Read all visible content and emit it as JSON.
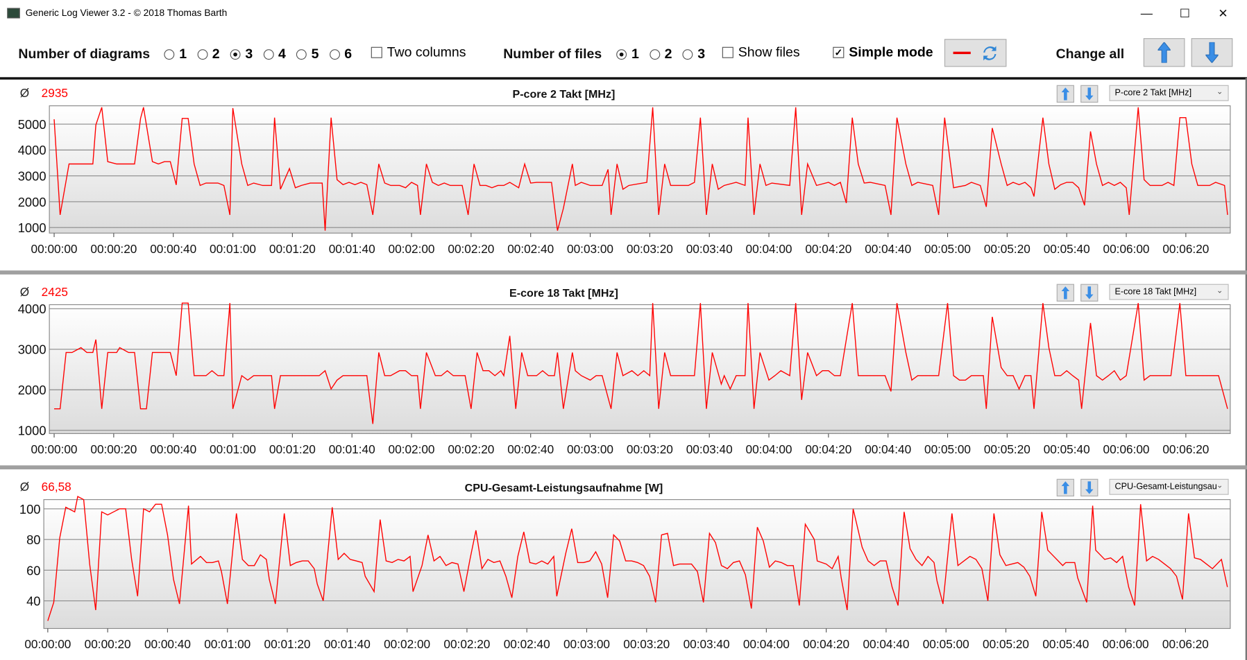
{
  "window": {
    "title": "Generic Log Viewer 3.2 - © 2018 Thomas Barth",
    "minimize": "—",
    "maximize": "☐",
    "close": "✕"
  },
  "toolbar": {
    "diagrams_label": "Number of diagrams",
    "diagram_options": [
      "1",
      "2",
      "3",
      "4",
      "5",
      "6"
    ],
    "diagram_selected": "3",
    "two_columns": {
      "label": "Two columns",
      "checked": false
    },
    "files_label": "Number of files",
    "file_options": [
      "1",
      "2",
      "3"
    ],
    "file_selected": "1",
    "show_files": {
      "label": "Show files",
      "checked": false
    },
    "simple_mode": {
      "label": "Simple mode",
      "checked": true
    },
    "change_all_label": "Change all"
  },
  "colors": {
    "series": "#ff0000",
    "accent_arrow": "#3a8ee6"
  },
  "chart_data": [
    {
      "type": "line",
      "title": "P-core 2 Takt [MHz]",
      "avg_symbol": "Ø",
      "avg": "2935",
      "selector": "P-core 2 Takt [MHz]",
      "ylim": [
        785,
        5710
      ],
      "yticks": [
        1000,
        2000,
        3000,
        4000,
        5000
      ],
      "xticks": [
        "00:00:00",
        "00:00:20",
        "00:00:40",
        "00:01:00",
        "00:01:20",
        "00:01:40",
        "00:02:00",
        "00:02:20",
        "00:02:40",
        "00:03:00",
        "00:03:20",
        "00:03:40",
        "00:04:00",
        "00:04:20",
        "00:04:40",
        "00:05:00",
        "00:05:20",
        "00:05:40",
        "00:06:00",
        "00:06:20"
      ],
      "xtick_step_s": 20,
      "x_s": [
        0,
        2,
        5,
        13,
        14,
        16,
        18,
        21,
        27,
        29,
        30,
        33,
        35,
        37,
        39,
        41,
        43,
        45,
        47,
        49,
        51,
        55,
        57,
        59,
        60,
        63,
        65,
        67,
        70,
        73,
        74,
        76,
        79,
        81,
        83,
        86,
        90,
        91,
        93,
        95,
        97,
        99,
        101,
        103,
        105,
        107,
        109,
        111,
        113,
        116,
        118,
        120,
        122,
        123,
        125,
        127,
        129,
        131,
        133,
        137,
        139,
        141,
        143,
        145,
        147,
        149,
        151,
        153,
        156,
        158,
        160,
        162,
        167,
        169,
        171,
        174,
        175,
        177,
        180,
        184,
        186,
        187,
        189,
        191,
        193,
        199,
        201,
        203,
        205,
        207,
        213,
        215,
        217,
        219,
        221,
        223,
        225,
        229,
        232,
        233,
        235,
        237,
        239,
        241,
        247,
        249,
        251,
        253,
        256,
        260,
        262,
        264,
        266,
        268,
        270,
        272,
        274,
        279,
        281,
        283,
        286,
        288,
        290,
        295,
        297,
        299,
        302,
        306,
        308,
        311,
        313,
        315,
        318,
        320,
        322,
        324,
        326,
        328,
        329,
        332,
        334,
        336,
        338,
        340,
        342,
        344,
        346,
        348,
        350,
        352,
        354,
        356,
        358,
        360,
        361,
        364,
        366,
        368,
        372,
        374,
        376,
        378,
        380,
        382,
        384,
        388,
        390,
        393,
        394
      ],
      "values": [
        5190,
        1490,
        3460,
        3460,
        4970,
        5650,
        3550,
        3460,
        3460,
        5220,
        5650,
        3550,
        3460,
        3550,
        3550,
        2650,
        5220,
        5220,
        3460,
        2630,
        2720,
        2720,
        2630,
        1490,
        5620,
        3460,
        2630,
        2720,
        2630,
        2630,
        5250,
        2480,
        3280,
        2540,
        2630,
        2720,
        2720,
        880,
        5250,
        2850,
        2660,
        2750,
        2660,
        2750,
        2660,
        1490,
        3460,
        2720,
        2630,
        2630,
        2540,
        2750,
        2630,
        1490,
        3460,
        2750,
        2630,
        2720,
        2630,
        2630,
        1490,
        3460,
        2630,
        2630,
        2540,
        2630,
        2630,
        2750,
        2540,
        3460,
        2720,
        2750,
        2750,
        880,
        1740,
        3460,
        2630,
        2750,
        2630,
        2630,
        3250,
        1490,
        3460,
        2480,
        2630,
        2750,
        5650,
        1490,
        3460,
        2630,
        2630,
        2750,
        5250,
        1490,
        3460,
        2480,
        2630,
        2750,
        2630,
        5250,
        1490,
        3460,
        2630,
        2720,
        2630,
        5650,
        1490,
        3460,
        2630,
        2750,
        2630,
        2750,
        1950,
        5250,
        3460,
        2720,
        2750,
        2630,
        1490,
        5250,
        3460,
        2630,
        2750,
        2630,
        1490,
        5250,
        2540,
        2630,
        2750,
        2630,
        1800,
        4850,
        3460,
        2630,
        2750,
        2660,
        2750,
        2540,
        2200,
        5250,
        3460,
        2480,
        2660,
        2750,
        2750,
        2540,
        1860,
        4720,
        3460,
        2630,
        2750,
        2630,
        2750,
        2540,
        1490,
        5650,
        2850,
        2630,
        2630,
        2750,
        2630,
        5250,
        5250,
        3460,
        2630,
        2630,
        2750,
        2630,
        1490
      ]
    },
    {
      "type": "line",
      "title": "E-core 18 Takt [MHz]",
      "avg_symbol": "Ø",
      "avg": "2425",
      "selector": "E-core 18 Takt [MHz]",
      "ylim": [
        920,
        4100
      ],
      "yticks": [
        1000,
        2000,
        3000,
        4000
      ],
      "xticks": [
        "00:00:00",
        "00:00:20",
        "00:00:40",
        "00:01:00",
        "00:01:20",
        "00:01:40",
        "00:02:00",
        "00:02:20",
        "00:02:40",
        "00:03:00",
        "00:03:20",
        "00:03:40",
        "00:04:00",
        "00:04:20",
        "00:04:40",
        "00:05:00",
        "00:05:20",
        "00:05:40",
        "00:06:00",
        "00:06:20"
      ],
      "xtick_step_s": 20,
      "x_s": [
        0,
        2,
        4,
        6,
        9,
        11,
        13,
        14,
        16,
        18,
        21,
        22,
        25,
        27,
        29,
        31,
        33,
        39,
        41,
        43,
        45,
        47,
        49,
        51,
        53,
        55,
        57,
        59,
        60,
        63,
        65,
        67,
        73,
        74,
        76,
        89,
        91,
        93,
        95,
        97,
        105,
        107,
        109,
        111,
        113,
        116,
        118,
        120,
        122,
        123,
        125,
        128,
        130,
        132,
        134,
        138,
        140,
        142,
        144,
        146,
        148,
        150,
        151,
        153,
        155,
        157,
        159,
        162,
        164,
        166,
        168,
        169,
        171,
        174,
        175,
        177,
        180,
        182,
        184,
        187,
        189,
        191,
        194,
        196,
        198,
        200,
        201,
        203,
        205,
        207,
        215,
        217,
        219,
        221,
        224,
        225,
        227,
        229,
        232,
        233,
        235,
        237,
        240,
        242,
        244,
        247,
        249,
        251,
        253,
        256,
        258,
        260,
        262,
        264,
        268,
        270,
        279,
        281,
        283,
        286,
        288,
        290,
        297,
        300,
        302,
        304,
        306,
        308,
        312,
        313,
        315,
        318,
        320,
        322,
        324,
        326,
        328,
        329,
        332,
        334,
        336,
        338,
        340,
        342,
        344,
        345,
        348,
        350,
        352,
        354,
        356,
        358,
        360,
        364,
        366,
        368,
        375,
        378,
        380,
        391,
        394
      ],
      "values": [
        1530,
        1530,
        2920,
        2920,
        3040,
        2920,
        2920,
        3240,
        1530,
        2920,
        2920,
        3040,
        2920,
        2920,
        1530,
        1530,
        2920,
        2920,
        2350,
        4140,
        4140,
        2350,
        2350,
        2350,
        2470,
        2350,
        2350,
        4140,
        1530,
        2350,
        2240,
        2350,
        2350,
        1530,
        2350,
        2350,
        2470,
        2020,
        2240,
        2350,
        2350,
        1160,
        2920,
        2350,
        2350,
        2470,
        2470,
        2350,
        2350,
        1530,
        2920,
        2350,
        2350,
        2470,
        2350,
        2350,
        1530,
        2920,
        2470,
        2470,
        2350,
        2470,
        2350,
        3330,
        1530,
        2920,
        2350,
        2350,
        2470,
        2350,
        2350,
        2920,
        1530,
        2920,
        2470,
        2350,
        2240,
        2350,
        2350,
        1530,
        2920,
        2350,
        2470,
        2350,
        2470,
        2350,
        4140,
        1530,
        2920,
        2350,
        2350,
        4140,
        1530,
        2920,
        2140,
        2350,
        2020,
        2350,
        2350,
        4140,
        1530,
        2920,
        2240,
        2350,
        2470,
        2350,
        4140,
        1750,
        2920,
        2350,
        2470,
        2470,
        2350,
        2350,
        4140,
        2350,
        2350,
        1960,
        4140,
        2920,
        2240,
        2350,
        2350,
        4140,
        2350,
        2240,
        2240,
        2350,
        2350,
        1530,
        3800,
        2550,
        2350,
        2350,
        2020,
        2350,
        2350,
        1530,
        4140,
        3040,
        2350,
        2350,
        2470,
        2350,
        2240,
        1530,
        3650,
        2350,
        2240,
        2350,
        2470,
        2240,
        2350,
        4140,
        2240,
        2350,
        2350,
        4140,
        2350,
        2350,
        1530
      ]
    },
    {
      "type": "line",
      "title": "CPU-Gesamt-Leistungsaufnahme [W]",
      "avg_symbol": "Ø",
      "avg": "66,58",
      "selector": "CPU-Gesamt-Leistungsau",
      "ylim": [
        22,
        106
      ],
      "yticks": [
        40,
        60,
        80,
        100
      ],
      "xticks": [
        "00:00:00",
        "00:00:20",
        "00:00:40",
        "00:01:00",
        "00:01:20",
        "00:01:40",
        "00:02:00",
        "00:02:20",
        "00:02:40",
        "00:03:00",
        "00:03:20",
        "00:03:40",
        "00:04:00",
        "00:04:20",
        "00:04:40",
        "00:05:00",
        "00:05:20",
        "00:05:40",
        "00:06:00",
        "00:06:20"
      ],
      "xtick_step_s": 20,
      "x_s": [
        0,
        2,
        4,
        6,
        9,
        10,
        12,
        14,
        16,
        18,
        20,
        22,
        24,
        26,
        28,
        30,
        32,
        34,
        36,
        38,
        40,
        42,
        44,
        47,
        48,
        51,
        53,
        55,
        57,
        58,
        60,
        63,
        65,
        67,
        69,
        71,
        73,
        74,
        76,
        79,
        81,
        83,
        85,
        87,
        89,
        90,
        92,
        95,
        97,
        99,
        101,
        103,
        105,
        106,
        109,
        111,
        113,
        115,
        117,
        119,
        121,
        122,
        125,
        127,
        129,
        131,
        133,
        135,
        137,
        139,
        141,
        143,
        145,
        147,
        149,
        151,
        153,
        155,
        157,
        159,
        161,
        163,
        165,
        167,
        169,
        170,
        173,
        175,
        177,
        179,
        181,
        183,
        185,
        187,
        189,
        191,
        193,
        195,
        197,
        199,
        201,
        203,
        205,
        207,
        209,
        211,
        213,
        215,
        217,
        219,
        221,
        223,
        225,
        227,
        229,
        231,
        233,
        235,
        237,
        239,
        241,
        243,
        245,
        247,
        249,
        251,
        253,
        256,
        257,
        260,
        262,
        264,
        265,
        267,
        269,
        272,
        274,
        276,
        278,
        280,
        282,
        284,
        286,
        288,
        290,
        292,
        294,
        296,
        297,
        299,
        302,
        304,
        306,
        308,
        310,
        312,
        314,
        316,
        318,
        320,
        322,
        324,
        326,
        328,
        330,
        332,
        334,
        336,
        339,
        340,
        343,
        344,
        347,
        349,
        350,
        353,
        355,
        357,
        359,
        361,
        363,
        365,
        367,
        369,
        371,
        373,
        375,
        377,
        379,
        381,
        383,
        385,
        387,
        389,
        392,
        394
      ],
      "values": [
        27,
        39,
        81,
        101,
        98,
        108,
        106,
        64,
        34,
        98,
        96,
        98,
        100,
        100,
        67,
        43,
        100,
        98,
        103,
        103,
        83,
        54,
        38,
        102,
        64,
        69,
        65,
        65,
        66,
        59,
        38,
        97,
        67,
        63,
        63,
        70,
        67,
        54,
        38,
        97,
        63,
        65,
        66,
        66,
        61,
        51,
        40,
        101,
        67,
        71,
        67,
        66,
        65,
        56,
        46,
        93,
        66,
        65,
        67,
        66,
        69,
        46,
        63,
        83,
        66,
        69,
        63,
        65,
        64,
        46,
        67,
        86,
        61,
        67,
        65,
        66,
        56,
        42,
        69,
        85,
        65,
        64,
        66,
        64,
        69,
        43,
        71,
        87,
        65,
        65,
        66,
        72,
        64,
        42,
        83,
        79,
        66,
        66,
        65,
        63,
        56,
        39,
        83,
        84,
        63,
        64,
        64,
        64,
        59,
        39,
        84,
        78,
        63,
        61,
        65,
        66,
        57,
        35,
        88,
        79,
        62,
        66,
        65,
        63,
        63,
        37,
        90,
        80,
        66,
        64,
        61,
        69,
        55,
        34,
        100,
        75,
        66,
        63,
        66,
        66,
        49,
        37,
        98,
        74,
        67,
        63,
        69,
        65,
        53,
        38,
        97,
        63,
        66,
        69,
        67,
        61,
        40,
        97,
        70,
        63,
        64,
        65,
        62,
        56,
        43,
        98,
        73,
        69,
        63,
        65,
        65,
        55,
        39,
        102,
        73,
        67,
        68,
        65,
        69,
        49,
        37,
        103,
        66,
        69,
        67,
        64,
        61,
        56,
        41,
        97,
        68,
        67,
        64,
        61,
        67,
        49
      ]
    }
  ]
}
